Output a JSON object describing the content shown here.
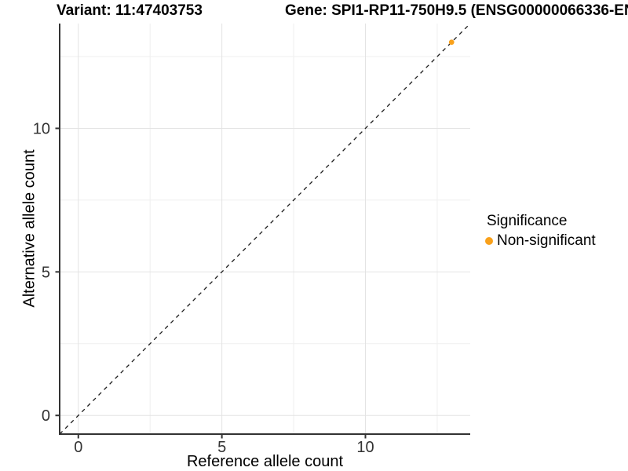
{
  "titles": {
    "variant": "Variant: 11:47403753",
    "gene": "Gene: SPI1-RP11-750H9.5 (ENSG00000066336-EN"
  },
  "chart_data": {
    "type": "scatter",
    "xlabel": "Reference allele count",
    "ylabel": "Alternative allele count",
    "xlim": [
      -0.65,
      13.65
    ],
    "ylim": [
      -0.65,
      13.65
    ],
    "x_ticks": [
      0,
      5,
      10
    ],
    "y_ticks": [
      0,
      5,
      10
    ],
    "x_minor_gridlines": [
      2.5,
      7.5,
      12.5
    ],
    "y_minor_gridlines": [
      2.5,
      7.5,
      12.5
    ],
    "grid": "on",
    "series": [
      {
        "name": "Non-significant",
        "color": "#F9A11B",
        "points": [
          {
            "x": 13,
            "y": 13
          }
        ]
      }
    ],
    "reference_line": {
      "type": "identity",
      "style": "dashed",
      "color": "#1a1a1a"
    },
    "legend": {
      "title": "Significance",
      "position": "right",
      "items": [
        {
          "label": "Non-significant",
          "color": "#F9A11B",
          "marker": "circle"
        }
      ]
    }
  },
  "colors": {
    "background": "#FFFFFF",
    "axis_line": "#333333",
    "tick_label": "#333333",
    "grid_major": "#E3E3E3",
    "grid_minor": "#EFEFEF"
  }
}
